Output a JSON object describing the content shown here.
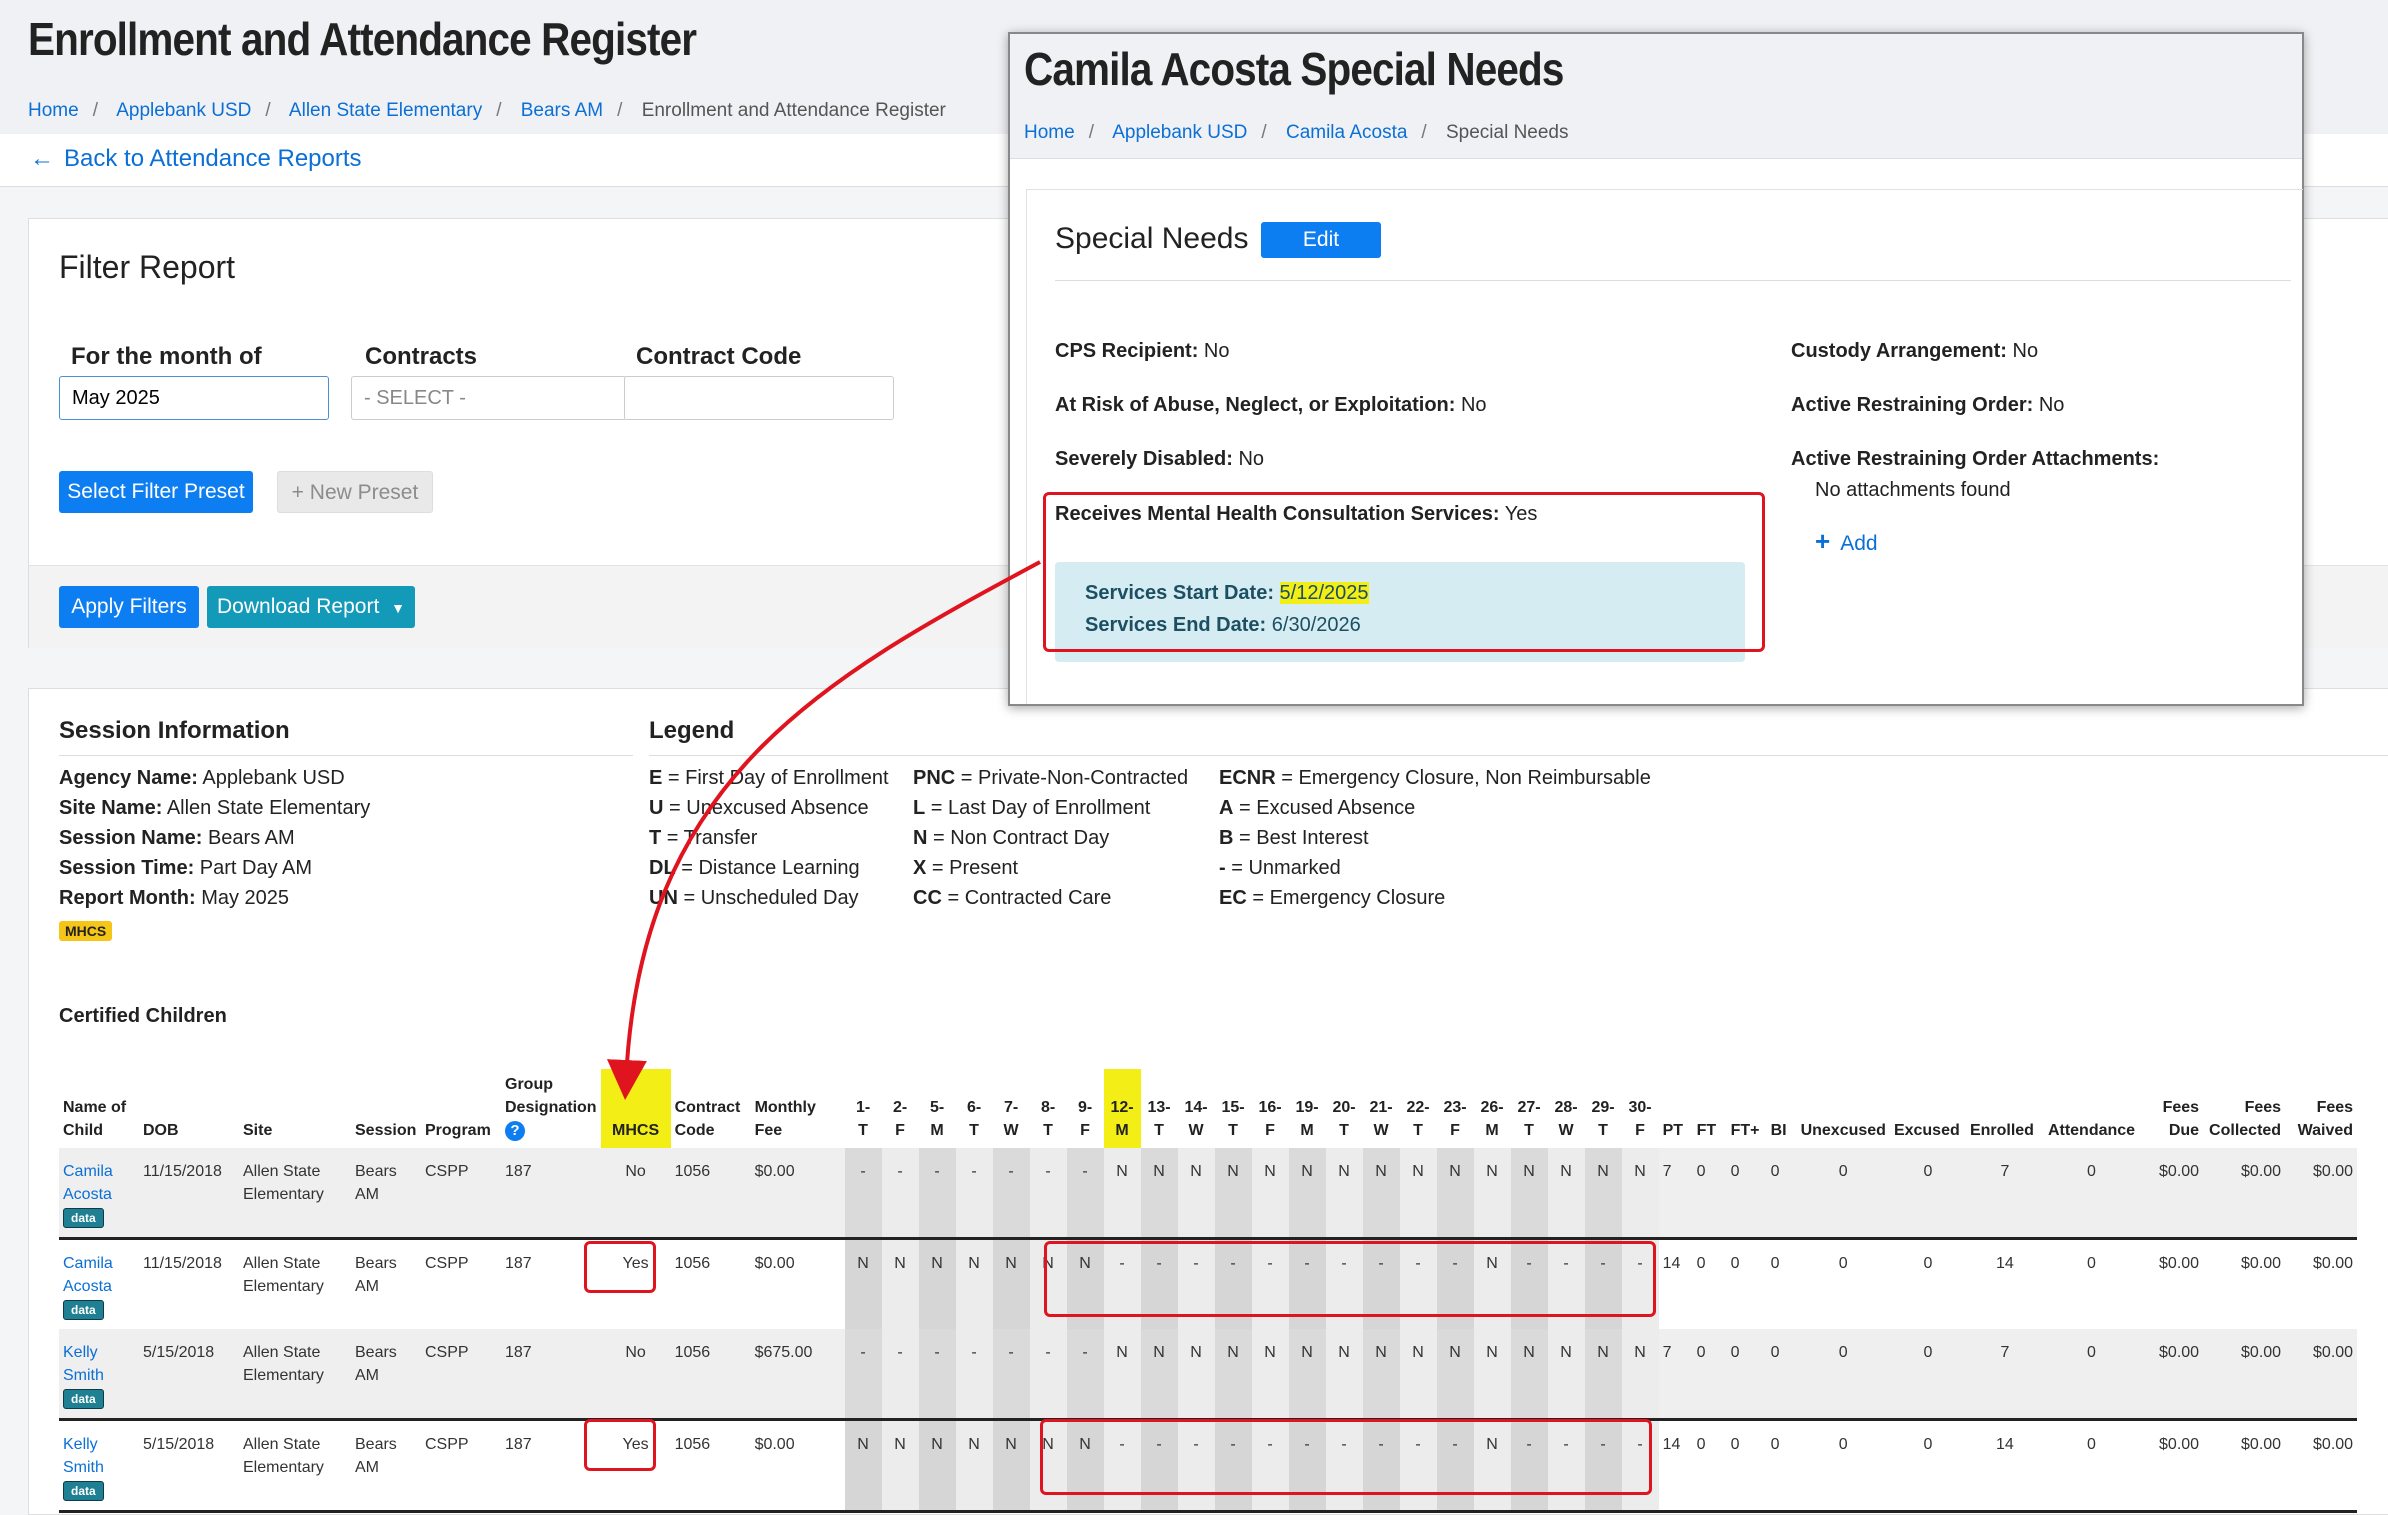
{
  "page": {
    "title": "Enrollment and Attendance Register",
    "breadcrumb": [
      "Home",
      "Applebank USD",
      "Allen State Elementary",
      "Bears AM",
      "Enrollment and Attendance Register"
    ],
    "back_link": "Back to Attendance Reports"
  },
  "filter": {
    "title": "Filter Report",
    "month_label": "For the month of",
    "month_value": "May 2025",
    "contracts_label": "Contracts",
    "contracts_placeholder": "- SELECT -",
    "contract_code_label": "Contract Code",
    "contract_code_value": "",
    "select_preset": "Select Filter Preset",
    "new_preset": "New Preset",
    "apply": "Apply Filters",
    "download": "Download Report"
  },
  "session": {
    "title": "Session Information",
    "agency_label": "Agency Name:",
    "agency": "Applebank USD",
    "site_label": "Site Name:",
    "site": "Allen State Elementary",
    "session_label": "Session Name:",
    "session": "Bears AM",
    "time_label": "Session Time:",
    "time": "Part Day AM",
    "month_label": "Report Month:",
    "month": "May 2025",
    "badge": "MHCS"
  },
  "legend": {
    "title": "Legend",
    "items": [
      {
        "code": "E",
        "text": "= First Day of Enrollment"
      },
      {
        "code": "U",
        "text": "= Unexcused Absence"
      },
      {
        "code": "T",
        "text": "= Transfer"
      },
      {
        "code": "DL",
        "text": "= Distance Learning"
      },
      {
        "code": "UN",
        "text": "= Unscheduled Day"
      },
      {
        "code": "PNC",
        "text": "= Private-Non-Contracted"
      },
      {
        "code": "L",
        "text": "= Last Day of Enrollment"
      },
      {
        "code": "N",
        "text": "= Non Contract Day"
      },
      {
        "code": "X",
        "text": "= Present"
      },
      {
        "code": "CC",
        "text": "= Contracted Care"
      },
      {
        "code": "ECNR",
        "text": "= Emergency Closure, Non Reimbursable"
      },
      {
        "code": "A",
        "text": "= Excused Absence"
      },
      {
        "code": "B",
        "text": "= Best Interest"
      },
      {
        "code": "-",
        "text": "= Unmarked"
      },
      {
        "code": "EC",
        "text": "= Emergency Closure"
      }
    ]
  },
  "table": {
    "title": "Certified Children",
    "headers": {
      "name": [
        "Name of",
        "Child"
      ],
      "dob": "DOB",
      "site": "Site",
      "session": "Session",
      "program": "Program",
      "group": [
        "Group",
        "Designation"
      ],
      "mhcs": "MHCS",
      "contract": [
        "Contract",
        "Code"
      ],
      "fee": [
        "Monthly",
        "Fee"
      ],
      "pt": "PT",
      "ft": "FT",
      "ftplus": "FT+",
      "bi": "BI",
      "unexcused": "Unexcused",
      "excused": "Excused",
      "enrolled": "Enrolled",
      "attendance": "Attendance",
      "fees_due": [
        "Fees",
        "Due"
      ],
      "fees_collected": [
        "Fees",
        "Collected"
      ],
      "fees_waived": [
        "Fees",
        "Waived"
      ]
    },
    "days": [
      {
        "num": "1-",
        "dow": "T"
      },
      {
        "num": "2-",
        "dow": "F"
      },
      {
        "num": "5-",
        "dow": "M"
      },
      {
        "num": "6-",
        "dow": "T"
      },
      {
        "num": "7-",
        "dow": "W"
      },
      {
        "num": "8-",
        "dow": "T"
      },
      {
        "num": "9-",
        "dow": "F"
      },
      {
        "num": "12-",
        "dow": "M"
      },
      {
        "num": "13-",
        "dow": "T"
      },
      {
        "num": "14-",
        "dow": "W"
      },
      {
        "num": "15-",
        "dow": "T"
      },
      {
        "num": "16-",
        "dow": "F"
      },
      {
        "num": "19-",
        "dow": "M"
      },
      {
        "num": "20-",
        "dow": "T"
      },
      {
        "num": "21-",
        "dow": "W"
      },
      {
        "num": "22-",
        "dow": "T"
      },
      {
        "num": "23-",
        "dow": "F"
      },
      {
        "num": "26-",
        "dow": "M"
      },
      {
        "num": "27-",
        "dow": "T"
      },
      {
        "num": "28-",
        "dow": "W"
      },
      {
        "num": "29-",
        "dow": "T"
      },
      {
        "num": "30-",
        "dow": "F"
      }
    ],
    "rows": [
      {
        "first": "Camila",
        "last": "Acosta",
        "badge": "data",
        "dob": "11/15/2018",
        "site1": "Allen State",
        "site2": "Elementary",
        "session1": "Bears",
        "session2": "AM",
        "program": "CSPP",
        "group": "187",
        "mhcs": "No",
        "contract": "1056",
        "fee": "$0.00",
        "marks": [
          "-",
          "-",
          "-",
          "-",
          "-",
          "-",
          "-",
          "N",
          "N",
          "N",
          "N",
          "N",
          "N",
          "N",
          "N",
          "N",
          "N",
          "N",
          "N",
          "N",
          "N",
          "N"
        ],
        "pt": "7",
        "ft": "0",
        "ftplus": "0",
        "bi": "0",
        "unexcused": "0",
        "excused": "0",
        "enrolled": "7",
        "attendance": "0",
        "fees_due": "$0.00",
        "fees_collected": "$0.00",
        "fees_waived": "$0.00"
      },
      {
        "first": "Camila",
        "last": "Acosta",
        "badge": "data",
        "dob": "11/15/2018",
        "site1": "Allen State",
        "site2": "Elementary",
        "session1": "Bears",
        "session2": "AM",
        "program": "CSPP",
        "group": "187",
        "mhcs": "Yes",
        "contract": "1056",
        "fee": "$0.00",
        "marks": [
          "N",
          "N",
          "N",
          "N",
          "N",
          "N",
          "N",
          "-",
          "-",
          "-",
          "-",
          "-",
          "-",
          "-",
          "-",
          "-",
          "-",
          "N",
          "-",
          "-",
          "-",
          "-"
        ],
        "pt": "14",
        "ft": "0",
        "ftplus": "0",
        "bi": "0",
        "unexcused": "0",
        "excused": "0",
        "enrolled": "14",
        "attendance": "0",
        "fees_due": "$0.00",
        "fees_collected": "$0.00",
        "fees_waived": "$0.00"
      },
      {
        "first": "Kelly",
        "last": "Smith",
        "badge": "data",
        "dob": "5/15/2018",
        "site1": "Allen State",
        "site2": "Elementary",
        "session1": "Bears",
        "session2": "AM",
        "program": "CSPP",
        "group": "187",
        "mhcs": "No",
        "contract": "1056",
        "fee": "$675.00",
        "marks": [
          "-",
          "-",
          "-",
          "-",
          "-",
          "-",
          "-",
          "N",
          "N",
          "N",
          "N",
          "N",
          "N",
          "N",
          "N",
          "N",
          "N",
          "N",
          "N",
          "N",
          "N",
          "N"
        ],
        "pt": "7",
        "ft": "0",
        "ftplus": "0",
        "bi": "0",
        "unexcused": "0",
        "excused": "0",
        "enrolled": "7",
        "attendance": "0",
        "fees_due": "$0.00",
        "fees_collected": "$0.00",
        "fees_waived": "$0.00"
      },
      {
        "first": "Kelly",
        "last": "Smith",
        "badge": "data",
        "dob": "5/15/2018",
        "site1": "Allen State",
        "site2": "Elementary",
        "session1": "Bears",
        "session2": "AM",
        "program": "CSPP",
        "group": "187",
        "mhcs": "Yes",
        "contract": "1056",
        "fee": "$0.00",
        "marks": [
          "N",
          "N",
          "N",
          "N",
          "N",
          "N",
          "N",
          "-",
          "-",
          "-",
          "-",
          "-",
          "-",
          "-",
          "-",
          "-",
          "-",
          "N",
          "-",
          "-",
          "-",
          "-"
        ],
        "pt": "14",
        "ft": "0",
        "ftplus": "0",
        "bi": "0",
        "unexcused": "0",
        "excused": "0",
        "enrolled": "14",
        "attendance": "0",
        "fees_due": "$0.00",
        "fees_collected": "$0.00",
        "fees_waived": "$0.00"
      }
    ]
  },
  "popup": {
    "title": "Camila Acosta Special Needs",
    "breadcrumb": [
      "Home",
      "Applebank USD",
      "Camila Acosta",
      "Special Needs"
    ],
    "section_title": "Special Needs",
    "edit": "Edit",
    "cps_label": "CPS Recipient:",
    "cps": "No",
    "risk_label": "At Risk of Abuse, Neglect, or Exploitation:",
    "risk": "No",
    "disabled_label": "Severely Disabled:",
    "disabled": "No",
    "mhcs_label": "Receives Mental Health Consultation Services:",
    "mhcs": "Yes",
    "start_label": "Services Start Date:",
    "start": "5/12/2025",
    "end_label": "Services End Date:",
    "end": "6/30/2026",
    "custody_label": "Custody Arrangement:",
    "custody": "No",
    "restraining_label": "Active Restraining Order:",
    "restraining": "No",
    "attachments_label": "Active Restraining Order Attachments:",
    "attachments": "No attachments found",
    "add": "Add"
  },
  "colors": {
    "primary": "#0d7ef1",
    "info": "#139ab9",
    "highlight": "#f3ef16",
    "annotation": "#e0141e",
    "badge": "#f5c518"
  }
}
